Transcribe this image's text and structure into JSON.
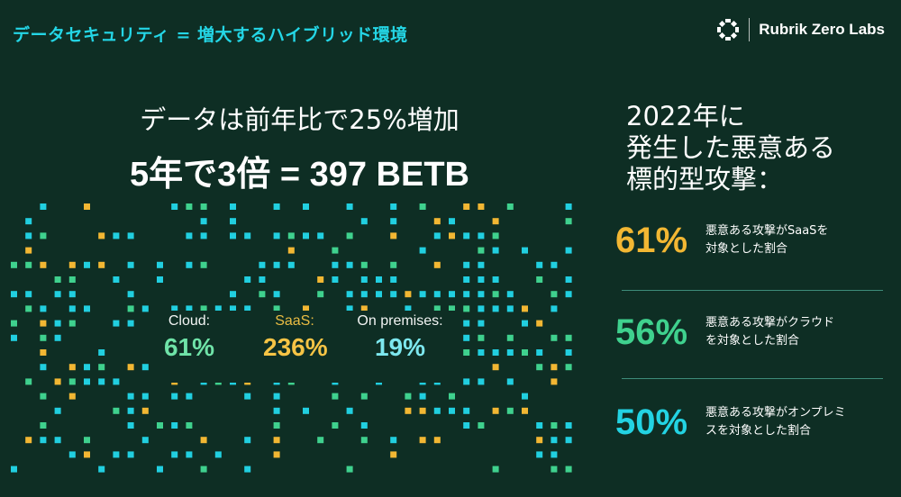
{
  "header": {
    "title": "データセキュリティ = 増大するハイブリッド環境"
  },
  "brand": {
    "name": "Rubrik Zero Labs",
    "logo_icon": "rubrik-logo-icon"
  },
  "left": {
    "headline_1": "データは前年比で25%増加",
    "headline_2": "5年で3倍 = 397 BETB",
    "stats": [
      {
        "label": "Cloud:",
        "value": "61%",
        "color": "#6fe3a8"
      },
      {
        "label": "SaaS:",
        "value": "236%",
        "color": "#f6c445"
      },
      {
        "label": "On premises:",
        "value": "19%",
        "color": "#7de8ef"
      }
    ]
  },
  "right": {
    "title_lines": [
      "2022年に",
      "発生した悪意ある",
      "標的型攻撃："
    ],
    "items": [
      {
        "percent": "61%",
        "color": "#f2b733",
        "desc_1": "悪意ある攻撃がSaaSを",
        "desc_2": "対象とした割合"
      },
      {
        "percent": "56%",
        "color": "#3fd18e",
        "desc_1": "悪意ある攻撃がクラウド",
        "desc_2": "を対象とした割合"
      },
      {
        "percent": "50%",
        "color": "#23d3e3",
        "desc_1": "悪意ある攻撃がオンプレミ",
        "desc_2": "スを対象とした割合"
      }
    ]
  },
  "colors": {
    "background": "#0e2e24",
    "accent_cyan": "#24d6e6",
    "dot_cyan": "#21cfe0",
    "dot_green": "#3fd18e",
    "dot_yellow": "#f2b733"
  }
}
